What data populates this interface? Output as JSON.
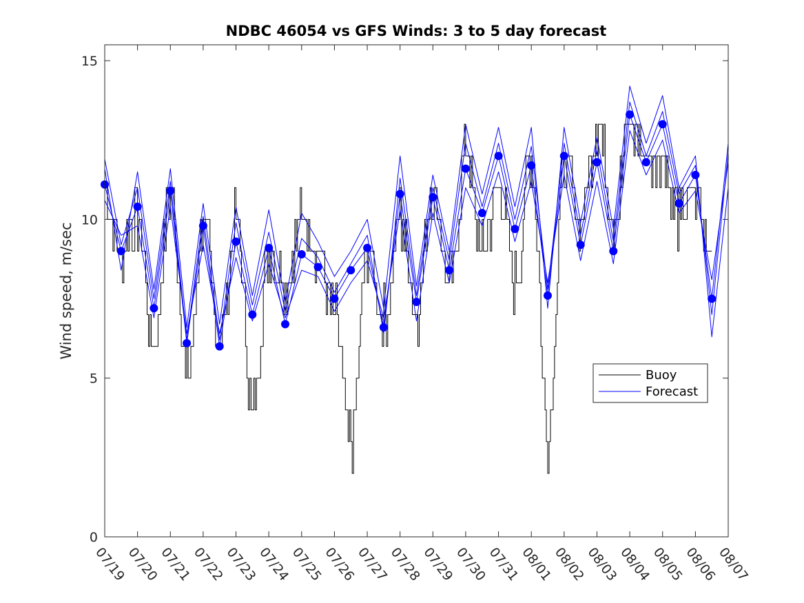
{
  "chart_data": {
    "type": "line",
    "title": "NDBC 46054 vs GFS Winds: 3 to 5 day forecast",
    "xlabel": "",
    "ylabel": "Wind speed, m/sec",
    "ylim": [
      0,
      15.5
    ],
    "xlim": [
      "07/19",
      "08/07"
    ],
    "xticks": [
      "07/19",
      "07/20",
      "07/21",
      "07/22",
      "07/23",
      "07/24",
      "07/25",
      "07/26",
      "07/27",
      "07/28",
      "07/29",
      "07/30",
      "07/31",
      "08/01",
      "08/02",
      "08/03",
      "08/04",
      "08/05",
      "08/06",
      "08/07"
    ],
    "yticks": [
      0,
      5,
      10,
      15
    ],
    "grid": false,
    "legend": {
      "placement": "bottom-right",
      "entries": [
        "Buoy",
        "Forecast"
      ]
    },
    "colors": {
      "buoy": "#000000",
      "forecast": "#0000ff",
      "marker": "#0000ff"
    },
    "buoy": {
      "name": "Buoy",
      "x_days": [
        0,
        0.5,
        1,
        1.5,
        2,
        2.5,
        3,
        3.5,
        4,
        4.5,
        5,
        5.5,
        6,
        6.5,
        7,
        7.5,
        8,
        8.5,
        9,
        9.5,
        10,
        10.5,
        11,
        11.5,
        12,
        12.5,
        13,
        13.5,
        14,
        14.5,
        15,
        15.5,
        16,
        16.5,
        17,
        17.5,
        18,
        18.5
      ],
      "values": [
        11,
        9,
        10,
        6,
        11,
        5,
        10,
        6,
        10,
        4,
        9,
        8,
        10,
        9,
        7,
        3,
        9,
        7,
        10,
        7,
        11,
        8,
        12,
        9,
        11,
        8,
        12,
        3,
        12,
        10,
        13,
        10,
        13,
        12,
        12,
        10,
        11,
        9
      ]
    },
    "forecast": {
      "name": "Forecast",
      "runs": [
        {
          "x_days": [
            0,
            0.5,
            1,
            1.5,
            2,
            2.5,
            3,
            3.5,
            4,
            4.5,
            5,
            5.5,
            6,
            6.5,
            7,
            7.5,
            8,
            8.5,
            9,
            9.5,
            10,
            10.5,
            11,
            11.5,
            12,
            12.5,
            13,
            13.5,
            14,
            14.5,
            15,
            15.5,
            16,
            16.5,
            17,
            17.5,
            18,
            18.5,
            19
          ],
          "values": [
            11.1,
            9,
            10.4,
            7.2,
            10.9,
            6.1,
            9.8,
            6,
            9.3,
            7,
            9.1,
            6.7,
            8.9,
            8.5,
            7.5,
            8.4,
            9.1,
            6.6,
            10.8,
            7.4,
            10.7,
            8.4,
            11.6,
            10.2,
            12,
            9.7,
            11.7,
            7.6,
            12,
            9.2,
            11.8,
            9,
            13.3,
            11.8,
            13,
            10.5,
            11.4,
            7.5,
            12.4
          ]
        },
        {
          "x_days": [
            0,
            0.5,
            1,
            1.5,
            2,
            2.5,
            3,
            3.5,
            4,
            4.5,
            5,
            5.5,
            6,
            6.5,
            7,
            7.5,
            8,
            8.5,
            9,
            9.5,
            10,
            10.5,
            11,
            11.5,
            12,
            12.5,
            13,
            13.5,
            14,
            14.5,
            15,
            15.5,
            16,
            16.5,
            17,
            17.5,
            18,
            18.5,
            19
          ],
          "values": [
            11.6,
            8.4,
            11.5,
            7.8,
            11.6,
            6.6,
            10.5,
            6.7,
            10.4,
            7.6,
            10.3,
            7.4,
            10.2,
            9.3,
            8.2,
            9,
            10,
            7.2,
            12,
            7.9,
            11.4,
            9,
            13,
            10.8,
            12.9,
            10.4,
            12.9,
            7.2,
            12.9,
            9.9,
            12.6,
            9.7,
            14.2,
            12.4,
            13.9,
            11,
            12,
            6.3,
            11
          ]
        },
        {
          "x_days": [
            0,
            0.5,
            1,
            1.5,
            2,
            2.5,
            3,
            3.5,
            4,
            4.5,
            5,
            5.5,
            6,
            6.5,
            7,
            7.5,
            8,
            8.5,
            9,
            9.5,
            10,
            10.5,
            11,
            11.5,
            12,
            12.5,
            13,
            13.5,
            14,
            14.5,
            15,
            15.5,
            16,
            16.5,
            17,
            17.5,
            18,
            18.5,
            19
          ],
          "values": [
            10.6,
            9.5,
            9.8,
            6.9,
            10.4,
            6.4,
            9.2,
            6.4,
            8.8,
            6.8,
            8.6,
            6.9,
            8.4,
            8.2,
            7.1,
            8,
            8.7,
            6.9,
            10.3,
            6.8,
            10.2,
            8,
            11,
            9.8,
            11.5,
            9.3,
            11.2,
            8,
            11.4,
            8.7,
            11.2,
            8.6,
            12.8,
            11.4,
            12.5,
            10.2,
            10.9,
            8.1,
            11.8
          ]
        },
        {
          "x_days": [
            0,
            0.5,
            1,
            1.5,
            2,
            2.5,
            3,
            3.5,
            4,
            4.5,
            5,
            5.5,
            6,
            6.5,
            7,
            7.5,
            8,
            8.5,
            9,
            9.5,
            10,
            10.5,
            11,
            11.5,
            12,
            12.5,
            13,
            13.5,
            14,
            14.5,
            15,
            15.5,
            16,
            16.5,
            17,
            17.5,
            18,
            18.5,
            19
          ],
          "values": [
            11.9,
            9.2,
            11,
            7.5,
            11.2,
            6.2,
            10.1,
            6.2,
            9.9,
            7.3,
            9.6,
            7.1,
            9.4,
            8.8,
            7.7,
            8.6,
            9.5,
            6.4,
            11.3,
            7.6,
            11,
            8.7,
            12.4,
            10.4,
            12.4,
            10,
            12.3,
            7.8,
            12.4,
            9.5,
            12.2,
            9.3,
            13.7,
            12,
            13.4,
            10.8,
            11.7,
            7,
            12.1
          ]
        }
      ],
      "markers": {
        "x_days": [
          0,
          0.5,
          1,
          1.5,
          2,
          2.5,
          3,
          3.5,
          4,
          4.5,
          5,
          5.5,
          6,
          6.5,
          7,
          7.5,
          8,
          8.5,
          9,
          9.5,
          10,
          10.5,
          11,
          11.5,
          12,
          12.5,
          13,
          13.5,
          14,
          14.5,
          15,
          15.5,
          16,
          16.5,
          17,
          17.5,
          18,
          18.5
        ],
        "values": [
          11.1,
          9,
          10.4,
          7.2,
          10.9,
          6.1,
          9.8,
          6,
          9.3,
          7,
          9.1,
          6.7,
          8.9,
          8.5,
          7.5,
          8.4,
          9.1,
          6.6,
          10.8,
          7.4,
          10.7,
          8.4,
          11.6,
          10.2,
          12,
          9.7,
          11.7,
          7.6,
          12,
          9.2,
          11.8,
          9,
          13.3,
          11.8,
          13,
          10.5,
          11.4,
          7.5
        ]
      }
    }
  }
}
